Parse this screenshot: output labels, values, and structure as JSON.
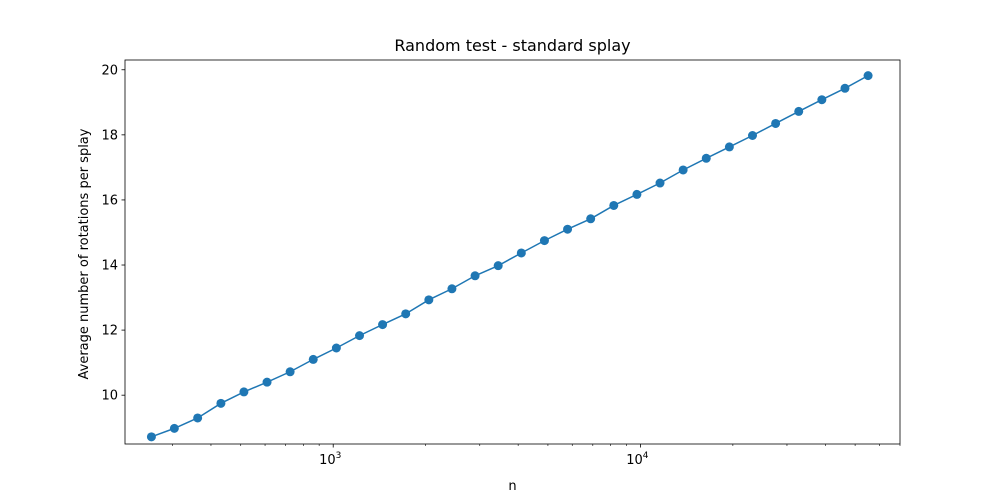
{
  "chart_data": {
    "type": "line",
    "title": "Random test - standard splay",
    "xlabel": "n",
    "ylabel": "Average number of rotations per splay",
    "x_scale": "log",
    "xlim": [
      210,
      70000
    ],
    "ylim": [
      8.5,
      20.3
    ],
    "x_major_ticks": [
      {
        "value": 1000,
        "base": "10",
        "exp": "3"
      },
      {
        "value": 10000,
        "base": "10",
        "exp": "4"
      }
    ],
    "y_ticks": [
      {
        "value": 10,
        "label": "10"
      },
      {
        "value": 12,
        "label": "12"
      },
      {
        "value": 14,
        "label": "14"
      },
      {
        "value": 16,
        "label": "16"
      },
      {
        "value": 18,
        "label": "18"
      },
      {
        "value": 20,
        "label": "20"
      }
    ],
    "grid": false,
    "marker": "circle",
    "color": "#1f77b4",
    "series": [
      {
        "x": [
          256,
          304,
          362,
          431,
          512,
          609,
          724,
          861,
          1024,
          1218,
          1448,
          1722,
          2048,
          2435,
          2896,
          3444,
          4096,
          4871,
          5793,
          6889,
          8192,
          9742,
          11585,
          13777,
          16384,
          19484,
          23170,
          27554,
          32768,
          38968,
          46341,
          55109
        ],
        "y": [
          8.72,
          8.98,
          9.3,
          9.75,
          10.1,
          10.4,
          10.72,
          11.1,
          11.45,
          11.83,
          12.17,
          12.5,
          12.93,
          13.27,
          13.67,
          13.98,
          14.37,
          14.75,
          15.1,
          15.42,
          15.83,
          16.17,
          16.52,
          16.92,
          17.28,
          17.63,
          17.98,
          18.35,
          18.72,
          19.08,
          19.43,
          19.82
        ]
      }
    ]
  }
}
